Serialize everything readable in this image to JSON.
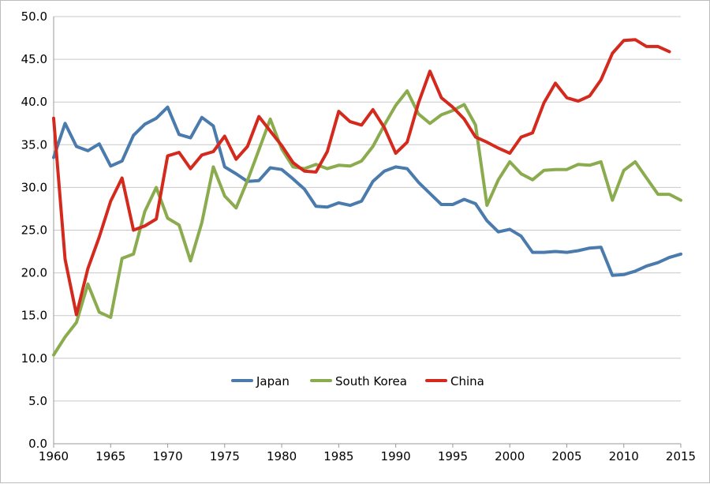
{
  "chart_data": {
    "type": "line",
    "title": "",
    "xlabel": "",
    "ylabel": "",
    "xlim": [
      1960,
      2015
    ],
    "ylim": [
      0,
      50
    ],
    "grid": true,
    "legend_position": "center",
    "x_ticks": [
      "1960",
      "1965",
      "1970",
      "1975",
      "1980",
      "1985",
      "1990",
      "1995",
      "2000",
      "2005",
      "2010",
      "2015"
    ],
    "y_ticks": [
      "0.0",
      "5.0",
      "10.0",
      "15.0",
      "20.0",
      "25.0",
      "30.0",
      "35.0",
      "40.0",
      "45.0",
      "50.0"
    ],
    "x": [
      1960,
      1961,
      1962,
      1963,
      1964,
      1965,
      1966,
      1967,
      1968,
      1969,
      1970,
      1971,
      1972,
      1973,
      1974,
      1975,
      1976,
      1977,
      1978,
      1979,
      1980,
      1981,
      1982,
      1983,
      1984,
      1985,
      1986,
      1987,
      1988,
      1989,
      1990,
      1991,
      1992,
      1993,
      1994,
      1995,
      1996,
      1997,
      1998,
      1999,
      2000,
      2001,
      2002,
      2003,
      2004,
      2005,
      2006,
      2007,
      2008,
      2009,
      2010,
      2011,
      2012,
      2013,
      2014,
      2015
    ],
    "series": [
      {
        "name": "Japan",
        "color": "#4a7bac",
        "values": [
          33.5,
          37.5,
          34.8,
          34.3,
          35.1,
          32.5,
          33.1,
          36.1,
          37.4,
          38.1,
          39.4,
          36.2,
          35.8,
          38.2,
          37.2,
          32.4,
          31.6,
          30.7,
          30.8,
          32.3,
          32.1,
          31.0,
          29.8,
          27.8,
          27.7,
          28.2,
          27.9,
          28.4,
          30.7,
          31.9,
          32.4,
          32.2,
          30.6,
          29.3,
          28.0,
          28.0,
          28.6,
          28.1,
          26.1,
          24.8,
          25.1,
          24.3,
          22.4,
          22.4,
          22.5,
          22.4,
          22.6,
          22.9,
          23.0,
          19.7,
          19.8,
          20.2,
          20.8,
          21.2,
          21.8,
          22.2
        ]
      },
      {
        "name": "South Korea",
        "color": "#8aac4e",
        "values": [
          10.4,
          12.5,
          14.2,
          18.7,
          15.4,
          14.8,
          21.7,
          22.2,
          27.2,
          30.0,
          26.4,
          25.6,
          21.4,
          25.9,
          32.4,
          29.0,
          27.6,
          30.8,
          34.4,
          38.0,
          34.5,
          32.4,
          32.2,
          32.7,
          32.2,
          32.6,
          32.5,
          33.1,
          34.8,
          37.3,
          39.6,
          41.3,
          38.6,
          37.5,
          38.5,
          39.0,
          39.7,
          37.3,
          27.9,
          30.9,
          33.0,
          31.6,
          30.9,
          32.0,
          32.1,
          32.1,
          32.7,
          32.6,
          33.0,
          28.5,
          32.0,
          33.0,
          31.1,
          29.2,
          29.2,
          28.5
        ]
      },
      {
        "name": "China",
        "color": "#d42a1e",
        "values": [
          38.1,
          21.6,
          15.1,
          20.5,
          24.2,
          28.4,
          31.1,
          25.0,
          25.5,
          26.3,
          33.7,
          34.1,
          32.2,
          33.8,
          34.2,
          36.0,
          33.3,
          34.8,
          38.3,
          36.6,
          34.9,
          32.9,
          31.9,
          31.8,
          34.2,
          38.9,
          37.7,
          37.3,
          39.1,
          37.0,
          34.0,
          35.3,
          39.9,
          43.6,
          40.5,
          39.4,
          38.0,
          35.9,
          35.3,
          34.6,
          34.0,
          35.9,
          36.4,
          39.9,
          42.2,
          40.5,
          40.1,
          40.7,
          42.6,
          45.7,
          47.2,
          47.3,
          46.5,
          46.5,
          45.9,
          null
        ]
      }
    ]
  }
}
